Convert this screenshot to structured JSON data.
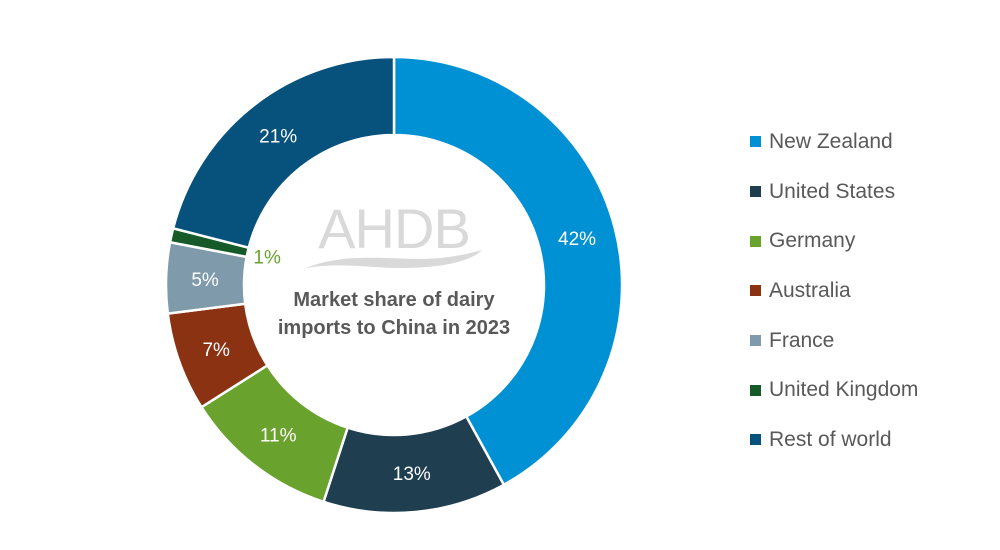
{
  "chart_data": {
    "type": "pie",
    "variant": "donut",
    "title": "Market share of dairy imports to China in 2023",
    "title_lines": [
      "Market share of dairy",
      "imports to China in 2023"
    ],
    "series": [
      {
        "name": "New Zealand",
        "value": 42,
        "label": "42%",
        "color": "#0090d4"
      },
      {
        "name": "United States",
        "value": 13,
        "label": "13%",
        "color": "#1f3e4f"
      },
      {
        "name": "Germany",
        "value": 11,
        "label": "11%",
        "color": "#6aa22e"
      },
      {
        "name": "Australia",
        "value": 7,
        "label": "7%",
        "color": "#8b3212"
      },
      {
        "name": "France",
        "value": 5,
        "label": "5%",
        "color": "#7e9aab"
      },
      {
        "name": "United Kingdom",
        "value": 1,
        "label": "1%",
        "color": "#175a2a"
      },
      {
        "name": "Rest of world",
        "value": 21,
        "label": "21%",
        "color": "#06527c"
      }
    ],
    "legend_position": "right",
    "label_inside_color": "#ffffff",
    "small_label_color": "#6aa22e"
  },
  "watermark": {
    "text": "AHDB"
  }
}
